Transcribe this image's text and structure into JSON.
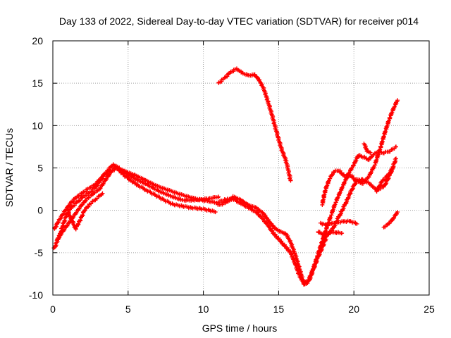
{
  "chart_data": {
    "type": "scatter",
    "title": "Day 133 of 2022, Sidereal Day-to-day VTEC variation (SDTVAR) for receiver p014",
    "xlabel": "GPS time / hours",
    "ylabel": "SDTVAR / TECUs",
    "xlim": [
      0,
      25
    ],
    "ylim": [
      -10,
      20
    ],
    "xticks": [
      "0",
      "5",
      "10",
      "15",
      "20",
      "25"
    ],
    "yticks": [
      "-10",
      "-5",
      "0",
      "5",
      "10",
      "15",
      "20"
    ],
    "grid": true,
    "marker": "+",
    "color": "#ff0000",
    "series": [
      {
        "points": [
          [
            0.1,
            -4.5
          ],
          [
            0.3,
            -3.6
          ],
          [
            0.5,
            -2.8
          ],
          [
            0.7,
            -1.6
          ],
          [
            0.9,
            -0.6
          ],
          [
            1.2,
            0.3
          ],
          [
            1.6,
            0.9
          ],
          [
            2.0,
            1.6
          ],
          [
            2.4,
            2.0
          ],
          [
            2.8,
            2.6
          ],
          [
            3.1,
            3.4
          ],
          [
            3.4,
            4.1
          ],
          [
            3.8,
            4.6
          ],
          [
            4.2,
            4.9
          ],
          [
            4.8,
            4.6
          ],
          [
            5.5,
            4.1
          ],
          [
            6.2,
            3.5
          ],
          [
            7.0,
            2.8
          ],
          [
            7.8,
            2.3
          ],
          [
            8.6,
            1.8
          ],
          [
            9.4,
            1.4
          ],
          [
            10.2,
            1.1
          ],
          [
            10.9,
            0.9
          ]
        ]
      },
      {
        "points": [
          [
            0.1,
            -2.2
          ],
          [
            0.4,
            -1.2
          ],
          [
            0.8,
            -0.1
          ],
          [
            1.2,
            0.9
          ],
          [
            1.6,
            1.6
          ],
          [
            2.0,
            2.1
          ],
          [
            2.4,
            2.6
          ],
          [
            2.8,
            3.0
          ],
          [
            3.2,
            3.8
          ],
          [
            3.6,
            4.6
          ],
          [
            4.0,
            5.4
          ],
          [
            4.4,
            5.0
          ],
          [
            5.0,
            4.2
          ],
          [
            5.6,
            3.6
          ],
          [
            6.3,
            3.0
          ],
          [
            7.0,
            2.3
          ],
          [
            7.8,
            1.7
          ],
          [
            8.6,
            1.2
          ],
          [
            9.5,
            1.2
          ],
          [
            10.4,
            1.4
          ],
          [
            11.0,
            1.6
          ]
        ]
      },
      {
        "points": [
          [
            0.3,
            -3.4
          ],
          [
            0.7,
            -2.4
          ],
          [
            1.1,
            -1.4
          ],
          [
            1.5,
            -0.4
          ],
          [
            1.9,
            0.6
          ],
          [
            2.3,
            1.4
          ],
          [
            2.7,
            2.0
          ],
          [
            3.1,
            2.5
          ],
          [
            3.5,
            3.6
          ],
          [
            3.9,
            4.6
          ],
          [
            4.2,
            5.1
          ],
          [
            4.7,
            4.2
          ],
          [
            5.2,
            3.5
          ],
          [
            5.7,
            2.9
          ],
          [
            6.2,
            2.4
          ],
          [
            6.8,
            1.8
          ],
          [
            7.4,
            1.2
          ],
          [
            8.0,
            0.7
          ],
          [
            8.6,
            0.5
          ],
          [
            9.2,
            0.3
          ],
          [
            9.8,
            0.2
          ],
          [
            10.4,
            0.0
          ],
          [
            10.8,
            -0.2
          ]
        ]
      },
      {
        "points": [
          [
            1.0,
            -0.2
          ],
          [
            1.3,
            -1.3
          ],
          [
            1.5,
            -2.2
          ],
          [
            1.8,
            -1.2
          ],
          [
            2.1,
            0.0
          ],
          [
            2.5,
            0.8
          ],
          [
            2.9,
            1.4
          ],
          [
            3.3,
            2.0
          ]
        ]
      },
      {
        "points": [
          [
            11.0,
            1.0
          ],
          [
            11.5,
            1.3
          ],
          [
            12.0,
            1.3
          ],
          [
            12.5,
            0.8
          ],
          [
            13.0,
            0.3
          ],
          [
            13.5,
            -0.2
          ],
          [
            13.9,
            -0.9
          ],
          [
            14.3,
            -1.8
          ],
          [
            14.7,
            -2.8
          ],
          [
            15.1,
            -3.6
          ],
          [
            15.5,
            -4.4
          ],
          [
            15.8,
            -5.0
          ],
          [
            16.1,
            -6.3
          ],
          [
            16.4,
            -7.8
          ],
          [
            16.7,
            -8.6
          ],
          [
            17.0,
            -8.2
          ],
          [
            17.3,
            -6.9
          ],
          [
            17.6,
            -5.3
          ],
          [
            17.9,
            -3.6
          ],
          [
            18.2,
            -2.0
          ],
          [
            18.5,
            -0.5
          ],
          [
            18.8,
            1.0
          ],
          [
            19.1,
            2.2
          ],
          [
            19.4,
            3.4
          ],
          [
            19.7,
            4.5
          ],
          [
            20.0,
            5.4
          ],
          [
            20.3,
            6.5
          ],
          [
            20.6,
            6.3
          ],
          [
            21.0,
            6.0
          ],
          [
            21.3,
            6.6
          ],
          [
            21.6,
            6.9
          ],
          [
            22.0,
            6.8
          ],
          [
            22.4,
            7.0
          ],
          [
            22.8,
            7.5
          ]
        ]
      },
      {
        "points": [
          [
            11.0,
            0.6
          ],
          [
            11.5,
            0.9
          ],
          [
            12.0,
            1.6
          ],
          [
            12.5,
            1.2
          ],
          [
            13.0,
            0.6
          ],
          [
            13.5,
            0.3
          ],
          [
            14.0,
            -0.4
          ],
          [
            14.4,
            -1.4
          ],
          [
            14.8,
            -2.2
          ],
          [
            15.2,
            -2.6
          ],
          [
            15.5,
            -2.8
          ],
          [
            15.8,
            -3.8
          ],
          [
            16.1,
            -5.2
          ],
          [
            16.4,
            -7.0
          ],
          [
            16.7,
            -8.8
          ],
          [
            17.0,
            -8.4
          ],
          [
            17.3,
            -7.0
          ],
          [
            17.6,
            -5.6
          ],
          [
            17.9,
            -4.4
          ],
          [
            18.2,
            -3.0
          ],
          [
            18.6,
            -2.2
          ],
          [
            19.0,
            -0.8
          ],
          [
            19.4,
            0.6
          ],
          [
            19.8,
            2.2
          ],
          [
            20.2,
            3.6
          ],
          [
            20.6,
            3.6
          ],
          [
            21.0,
            3.2
          ],
          [
            21.5,
            2.4
          ],
          [
            22.0,
            2.8
          ],
          [
            22.4,
            4.2
          ],
          [
            22.8,
            6.1
          ]
        ]
      },
      {
        "points": [
          [
            11.0,
            15.0
          ],
          [
            11.4,
            15.6
          ],
          [
            11.8,
            16.3
          ],
          [
            12.2,
            16.7
          ],
          [
            12.6,
            16.2
          ],
          [
            13.0,
            15.9
          ],
          [
            13.4,
            16.0
          ],
          [
            13.7,
            15.4
          ],
          [
            14.0,
            14.4
          ],
          [
            14.3,
            12.8
          ],
          [
            14.6,
            11.0
          ],
          [
            14.9,
            9.0
          ],
          [
            15.2,
            7.2
          ],
          [
            15.5,
            5.8
          ],
          [
            15.8,
            3.5
          ]
        ]
      },
      {
        "points": [
          [
            17.8,
            -1.5
          ],
          [
            18.2,
            -1.8
          ],
          [
            18.6,
            -1.5
          ],
          [
            19.0,
            -1.4
          ],
          [
            19.4,
            -1.3
          ],
          [
            19.8,
            -1.3
          ],
          [
            20.2,
            -1.6
          ]
        ]
      },
      {
        "points": [
          [
            17.6,
            -2.5
          ],
          [
            18.0,
            -2.9
          ],
          [
            18.4,
            -2.6
          ],
          [
            18.8,
            -2.6
          ],
          [
            19.2,
            -2.7
          ]
        ]
      },
      {
        "points": [
          [
            17.9,
            0.7
          ],
          [
            18.1,
            2.4
          ],
          [
            18.4,
            3.8
          ],
          [
            18.7,
            4.6
          ],
          [
            19.0,
            4.7
          ],
          [
            19.4,
            4.0
          ],
          [
            19.8,
            4.1
          ],
          [
            20.2,
            3.4
          ],
          [
            20.6,
            3.2
          ],
          [
            21.0,
            4.0
          ],
          [
            21.4,
            5.4
          ],
          [
            21.8,
            7.6
          ],
          [
            22.1,
            9.4
          ],
          [
            22.4,
            11.0
          ],
          [
            22.7,
            12.3
          ],
          [
            22.9,
            13.0
          ]
        ]
      },
      {
        "points": [
          [
            20.7,
            7.8
          ],
          [
            20.9,
            6.9
          ],
          [
            21.1,
            6.8
          ]
        ]
      },
      {
        "points": [
          [
            21.5,
            2.2
          ],
          [
            21.9,
            3.5
          ],
          [
            22.3,
            4.2
          ],
          [
            22.6,
            5.0
          ]
        ]
      },
      {
        "points": [
          [
            22.0,
            -2.0
          ],
          [
            22.3,
            -1.6
          ],
          [
            22.6,
            -1.0
          ],
          [
            22.9,
            -0.2
          ]
        ]
      }
    ]
  }
}
